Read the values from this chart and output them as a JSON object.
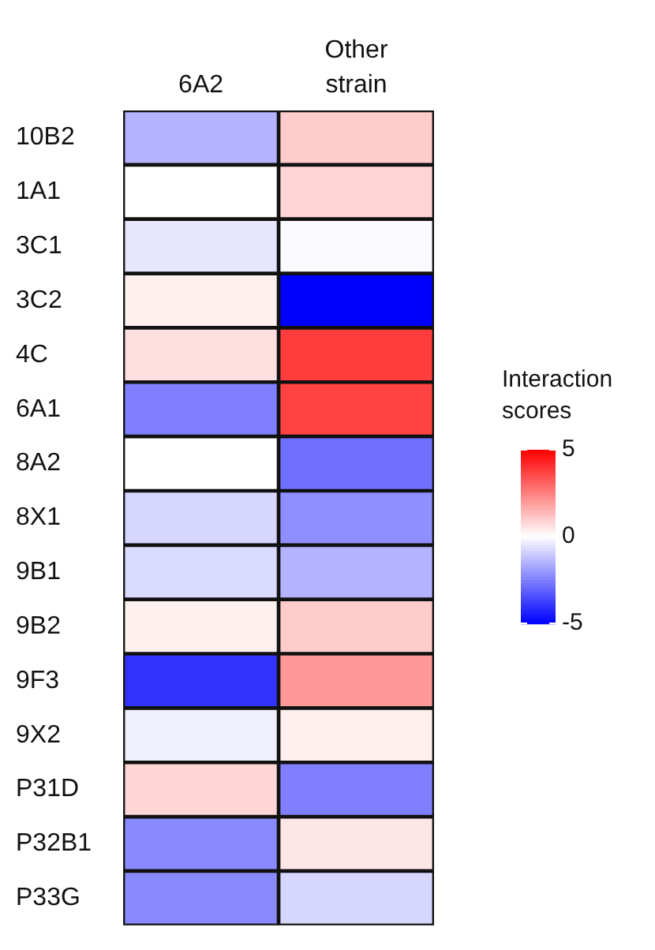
{
  "chart_data": {
    "type": "heatmap",
    "categories": [
      "6A2",
      "Other strain"
    ],
    "y_categories": [
      "10B2",
      "1A1",
      "3C1",
      "3C2",
      "4C",
      "6A1",
      "8A2",
      "8X1",
      "9B1",
      "9B2",
      "9F3",
      "9X2",
      "P31D",
      "P32B1",
      "P33G"
    ],
    "cells": [
      [
        -1.5,
        1
      ],
      [
        0,
        0.8
      ],
      [
        -0.5,
        -0.1
      ],
      [
        0.3,
        -5
      ],
      [
        0.6,
        3.8
      ],
      [
        -2.5,
        3.7
      ],
      [
        0,
        -2.8
      ],
      [
        -0.8,
        -2.2
      ],
      [
        -0.7,
        -1.5
      ],
      [
        0.3,
        1
      ],
      [
        -4,
        2
      ],
      [
        -0.3,
        0.3
      ],
      [
        0.8,
        -2.5
      ],
      [
        -2.3,
        0.5
      ],
      [
        -2.3,
        -0.8
      ]
    ],
    "clabel": "Interaction scores",
    "clim": [
      -5,
      5
    ],
    "cticks": [
      -5,
      0,
      5
    ]
  }
}
